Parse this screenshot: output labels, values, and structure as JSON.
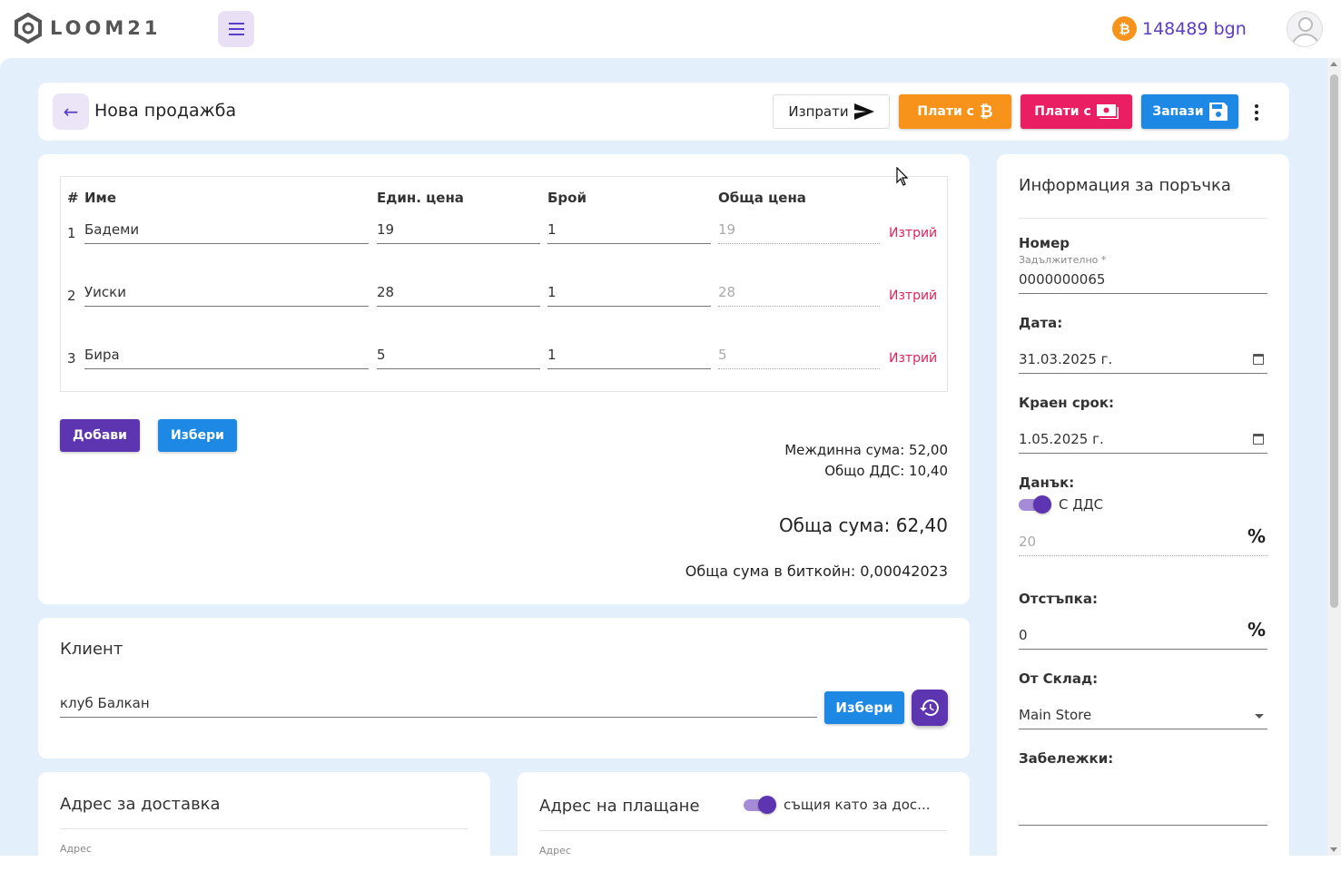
{
  "app": {
    "logo_text": "LOOM21",
    "balance": "148489 bgn",
    "btc_symbol": "₿"
  },
  "header": {
    "title": "Нова продажба",
    "send_label": "Изпрати",
    "pay_btc_label": "Плати с",
    "pay_cash_label": "Плати с",
    "save_label": "Запази"
  },
  "items": {
    "columns": [
      "#",
      "Име",
      "Един. цена",
      "Брой",
      "Обща цена"
    ],
    "rows": [
      {
        "n": "1",
        "name": "Бадеми",
        "price": "19",
        "qty": "1",
        "total": "19",
        "delete": "Изтрий"
      },
      {
        "n": "2",
        "name": "Уиски",
        "price": "28",
        "qty": "1",
        "total": "28",
        "delete": "Изтрий"
      },
      {
        "n": "3",
        "name": "Бира",
        "price": "5",
        "qty": "1",
        "total": "5",
        "delete": "Изтрий"
      }
    ],
    "add_label": "Добави",
    "pick_label": "Избери",
    "subtotal": "Междинна сума: 52,00",
    "vat_total": "Общо ДДС: 10,40",
    "grand_total": "Обща сума: 62,40",
    "btc_total": "Обща сума в биткойн: 0,00042023"
  },
  "client": {
    "title": "Клиент",
    "value": "клуб Балкан",
    "pick_label": "Избери"
  },
  "delivery": {
    "title": "Адрес за доставка",
    "address_label": "Адрес"
  },
  "payment": {
    "title": "Адрес на плащане",
    "same_label": "същия като за дос...",
    "address_label": "Адрес"
  },
  "order_info": {
    "title": "Информация за поръчка",
    "number_label": "Номер",
    "required_hint": "Задължително *",
    "number_value": "0000000065",
    "date_label": "Дата:",
    "date_value": "31.03.2025 г.",
    "due_label": "Краен срок:",
    "due_value": "1.05.2025 г.",
    "tax_label": "Данък:",
    "vat_toggle_label": "С ДДС",
    "tax_value": "20",
    "discount_label": "Отстъпка:",
    "discount_value": "0",
    "store_label": "От Склад:",
    "store_value": "Main Store",
    "notes_label": "Забележки:",
    "percent_symbol": "%"
  },
  "colors": {
    "accent": "#5e35b1",
    "btc": "#f7931a",
    "cash": "#e91e63",
    "primary": "#1e88e5",
    "background": "#e3f0fc",
    "delete": "#e0245e"
  },
  "icons": [
    "logo-icon",
    "menu-icon",
    "bitcoin-icon",
    "avatar-icon",
    "back-arrow-icon",
    "send-icon",
    "cash-icon",
    "save-icon",
    "more-vert-icon",
    "history-icon",
    "calendar-icon",
    "dropdown-caret-icon"
  ]
}
